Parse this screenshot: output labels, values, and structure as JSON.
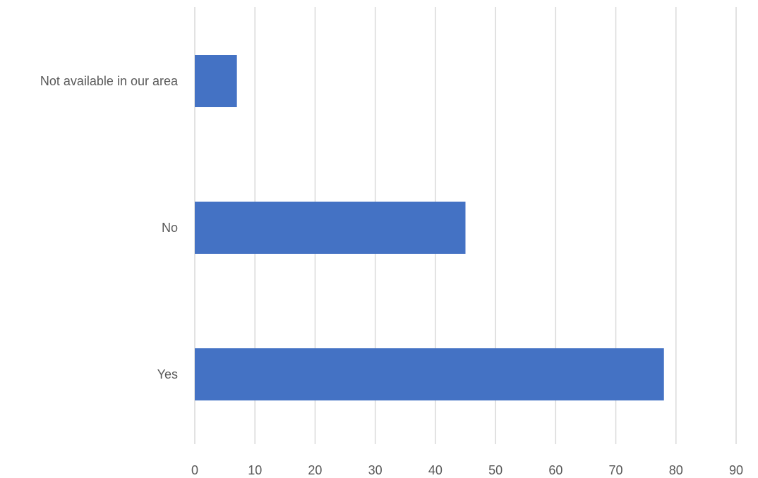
{
  "chart_data": {
    "type": "bar",
    "orientation": "horizontal",
    "categories": [
      "Not available in our area",
      "No",
      "Yes"
    ],
    "values": [
      7,
      45,
      78
    ],
    "xlim": [
      0,
      90
    ],
    "x_ticks": [
      0,
      10,
      20,
      30,
      40,
      50,
      60,
      70,
      80,
      90
    ],
    "x_tick_labels": [
      "0",
      "10",
      "20",
      "30",
      "40",
      "50",
      "60",
      "70",
      "80",
      "90"
    ],
    "title": "",
    "xlabel": "",
    "ylabel": "",
    "grid": "vertical",
    "legend": "none",
    "bar_color": "#4472C4",
    "grid_color": "#D9D9D9",
    "label_color": "#595959"
  }
}
